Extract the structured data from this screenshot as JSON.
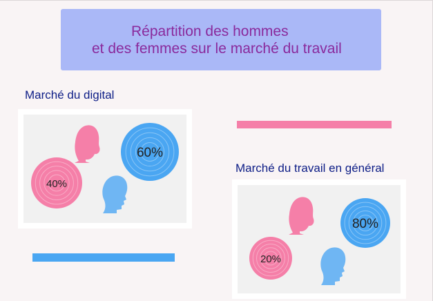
{
  "title": {
    "line1": "Répartition des hommes",
    "line2": "et des femmes sur le marché du travail"
  },
  "colors": {
    "women": "#f57fa8",
    "men": "#4aa6f2",
    "men_head": "#6fb6f3",
    "title_bg": "#aab8f7",
    "title_text": "#8a2a9c",
    "section_text": "#0d1d86"
  },
  "icons": [
    "woman-head-icon",
    "man-head-icon"
  ],
  "chart_data": [
    {
      "type": "bubble",
      "title": "Marché du digital",
      "series": [
        {
          "name": "",
          "category": "femmes",
          "value": 40,
          "label": "40%"
        },
        {
          "name": "",
          "category": "hommes",
          "value": 60,
          "label": "60%"
        }
      ]
    },
    {
      "type": "bubble",
      "title": "Marché du travail en général",
      "series": [
        {
          "name": "",
          "category": "femmes",
          "value": 20,
          "label": "20%"
        },
        {
          "name": "",
          "category": "hommes",
          "value": 80,
          "label": "80%"
        }
      ]
    }
  ]
}
